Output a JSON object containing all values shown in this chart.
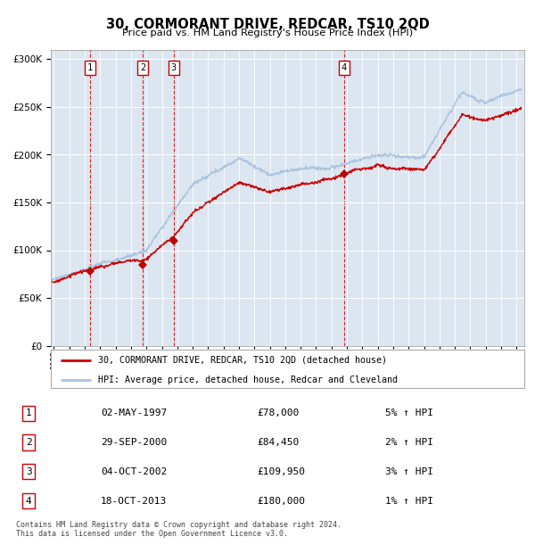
{
  "title": "30, CORMORANT DRIVE, REDCAR, TS10 2QD",
  "subtitle": "Price paid vs. HM Land Registry's House Price Index (HPI)",
  "legend_line1": "30, CORMORANT DRIVE, REDCAR, TS10 2QD (detached house)",
  "legend_line2": "HPI: Average price, detached house, Redcar and Cleveland",
  "sale_dates": [
    1997.34,
    2000.75,
    2002.76,
    2013.8
  ],
  "sale_prices": [
    78000,
    84450,
    109950,
    180000
  ],
  "table": [
    [
      "1",
      "02-MAY-1997",
      "£78,000",
      "5% ↑ HPI"
    ],
    [
      "2",
      "29-SEP-2000",
      "£84,450",
      "2% ↑ HPI"
    ],
    [
      "3",
      "04-OCT-2002",
      "£109,950",
      "3% ↑ HPI"
    ],
    [
      "4",
      "18-OCT-2013",
      "£180,000",
      "1% ↑ HPI"
    ]
  ],
  "footer": "Contains HM Land Registry data © Crown copyright and database right 2024.\nThis data is licensed under the Open Government Licence v3.0.",
  "hpi_color": "#aac4e0",
  "price_color": "#cc0000",
  "bg_color": "#dce6f1",
  "ylim": [
    0,
    310000
  ],
  "xlim_start": 1994.8,
  "xlim_end": 2025.5
}
